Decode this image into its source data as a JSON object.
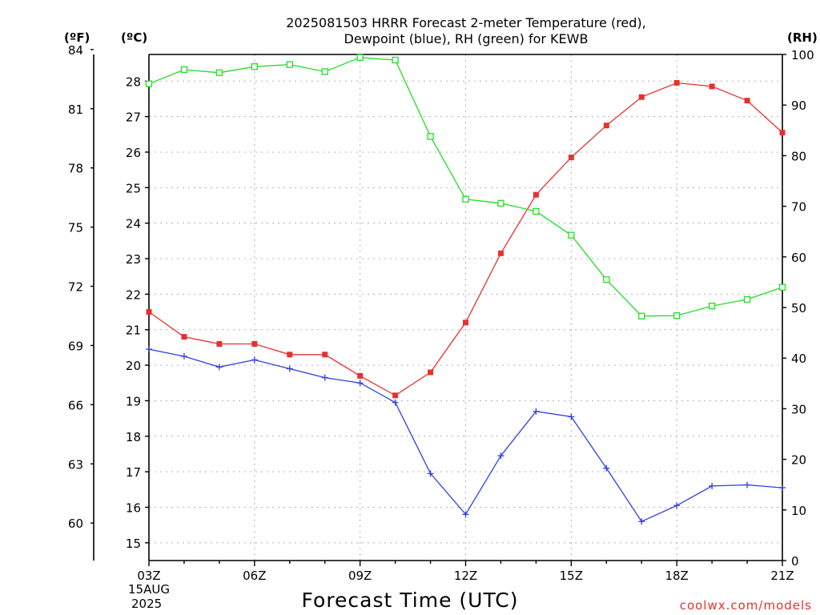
{
  "title": {
    "line1": "2025081503 HRRR Forecast 2-meter Temperature (red),",
    "line2": "Dewpoint (blue), RH (green) for KEWB"
  },
  "units": {
    "fahrenheit": "(ºF)",
    "celsius": "(ºC)",
    "rh": "(RH)"
  },
  "xlabel": "Forecast Time (UTC)",
  "date_label": [
    "15AUG",
    "2025"
  ],
  "credit": "coolwx.com/models",
  "chart_data": {
    "type": "line",
    "x": [
      "03Z",
      "04Z",
      "05Z",
      "06Z",
      "07Z",
      "08Z",
      "09Z",
      "10Z",
      "11Z",
      "12Z",
      "13Z",
      "14Z",
      "15Z",
      "16Z",
      "17Z",
      "18Z",
      "19Z",
      "20Z",
      "21Z"
    ],
    "x_tick_labels": [
      "03Z",
      "06Z",
      "09Z",
      "12Z",
      "15Z",
      "18Z",
      "21Z"
    ],
    "series": [
      {
        "name": "Temperature",
        "axis": "celsius",
        "color": "#e83030",
        "marker": "filled-square",
        "values": [
          21.5,
          20.8,
          20.6,
          20.6,
          20.3,
          20.3,
          19.7,
          19.15,
          19.8,
          21.2,
          23.15,
          24.8,
          25.85,
          26.75,
          27.55,
          27.95,
          27.85,
          27.45,
          26.55
        ]
      },
      {
        "name": "Dewpoint",
        "axis": "celsius",
        "color": "#2f3fe0",
        "marker": "plus",
        "values": [
          20.45,
          20.25,
          19.95,
          20.15,
          19.9,
          19.65,
          19.5,
          18.95,
          16.95,
          15.8,
          17.45,
          18.7,
          18.55,
          17.1,
          15.6,
          16.05,
          16.6,
          16.63,
          16.55
        ]
      },
      {
        "name": "RH",
        "axis": "rh",
        "color": "#22dd22",
        "marker": "open-square",
        "values": [
          94.2,
          97.0,
          96.4,
          97.6,
          98.0,
          96.6,
          99.4,
          98.9,
          83.8,
          71.4,
          70.6,
          69.0,
          64.3,
          55.5,
          48.3,
          48.4,
          50.3,
          51.6,
          54.0
        ]
      }
    ],
    "celsius_axis": {
      "ylim": [
        14.5,
        28.75
      ],
      "ticks": [
        15,
        16,
        17,
        18,
        19,
        20,
        21,
        22,
        23,
        24,
        25,
        26,
        27,
        28
      ]
    },
    "fahrenheit_axis": {
      "ticks": [
        60,
        63,
        66,
        69,
        72,
        75,
        78,
        81,
        84
      ]
    },
    "rh_axis": {
      "ylim": [
        0,
        100
      ],
      "ticks": [
        0,
        10,
        20,
        30,
        40,
        50,
        60,
        70,
        80,
        90,
        100
      ]
    },
    "grid": true
  }
}
